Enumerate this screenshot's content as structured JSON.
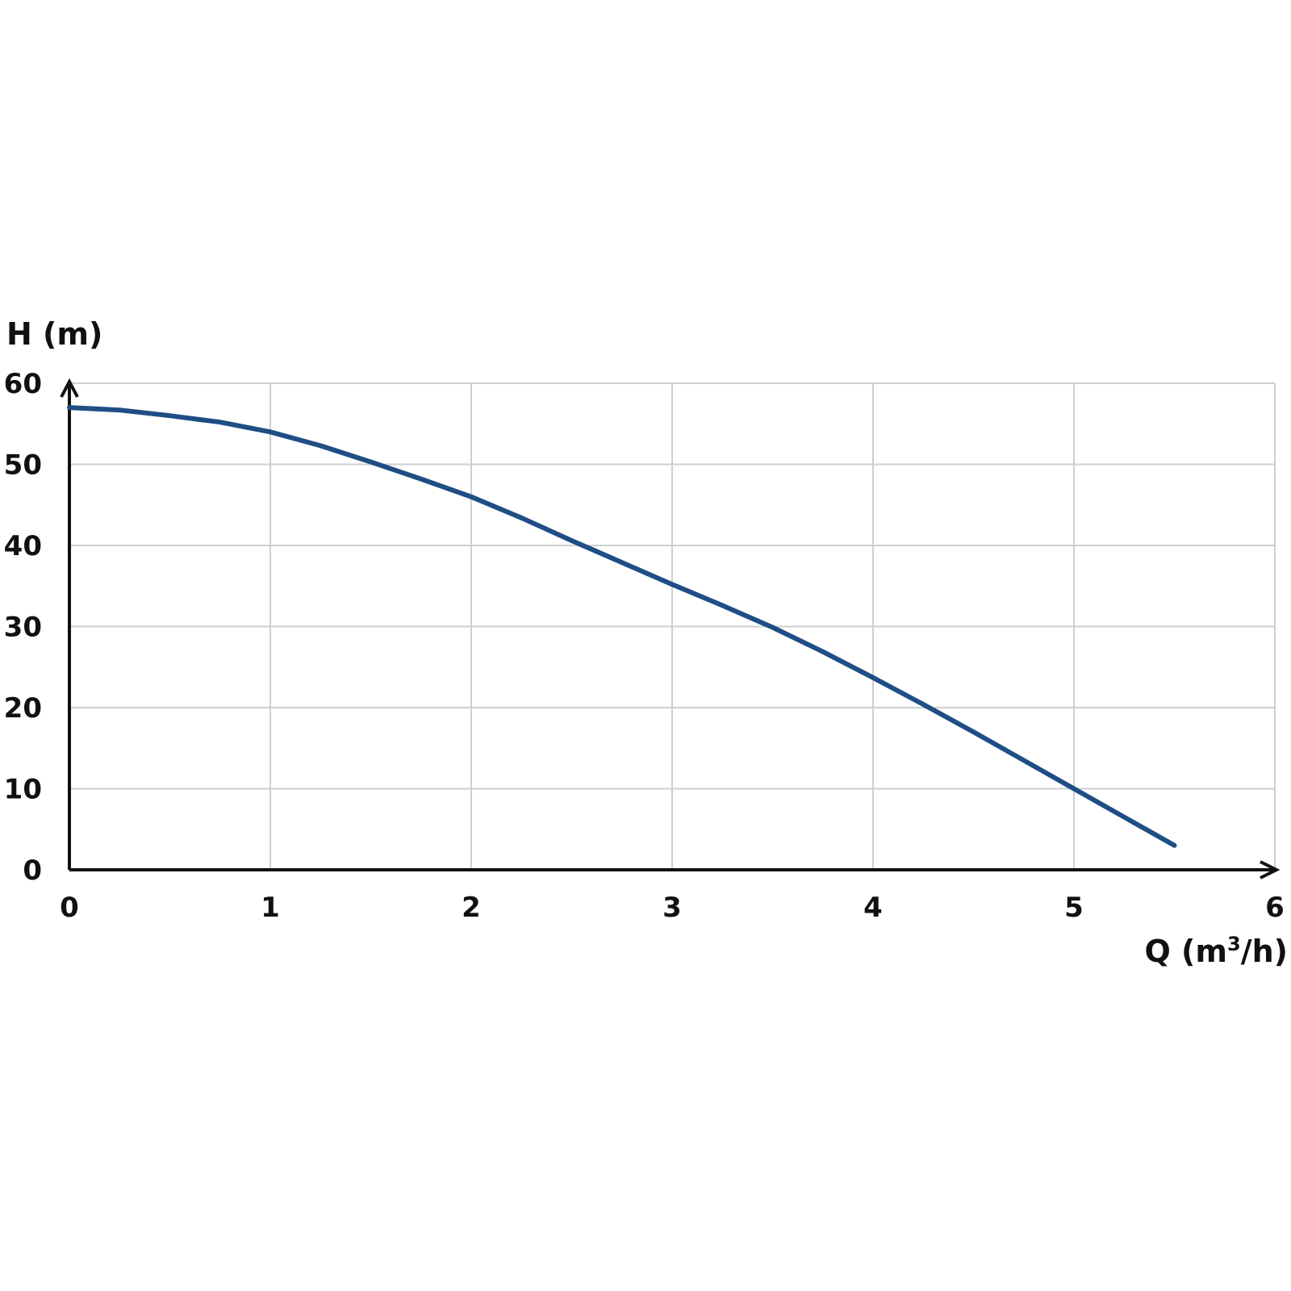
{
  "chart_data": {
    "type": "line",
    "title": "",
    "ylabel": "H (m)",
    "xlabel_main": "Q (m",
    "xlabel_sup": "3",
    "xlabel_tail": "/h)",
    "xlim": [
      0,
      6
    ],
    "ylim": [
      0,
      60
    ],
    "x_ticks": [
      0,
      1,
      2,
      3,
      4,
      5,
      6
    ],
    "y_ticks": [
      0,
      10,
      20,
      30,
      40,
      50,
      60
    ],
    "grid": true,
    "line_color": "#1f4e85",
    "series": [
      {
        "x": [
          0,
          0.25,
          0.5,
          0.75,
          1.0,
          1.25,
          1.5,
          1.75,
          2.0,
          2.25,
          2.5,
          2.75,
          3.0,
          3.25,
          3.5,
          3.75,
          4.0,
          4.25,
          4.5,
          4.75,
          5.0,
          5.25,
          5.5
        ],
        "y": [
          57.0,
          56.7,
          56.0,
          55.2,
          54.0,
          52.3,
          50.3,
          48.2,
          46.0,
          43.4,
          40.6,
          37.9,
          35.2,
          32.6,
          29.9,
          26.9,
          23.7,
          20.4,
          17.0,
          13.5,
          10.0,
          6.5,
          3.0
        ]
      }
    ]
  }
}
